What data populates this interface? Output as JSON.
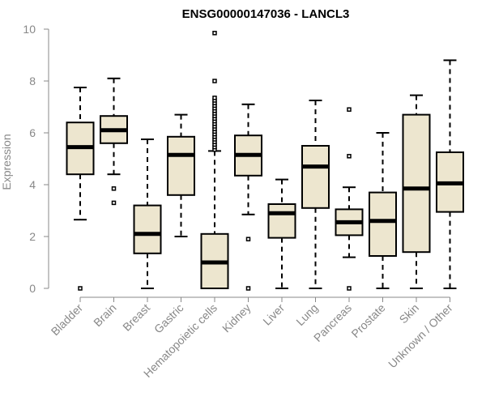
{
  "chart_data": {
    "type": "boxplot",
    "title": "ENSG00000147036 - LANCL3",
    "xlabel": "",
    "ylabel": "Expression",
    "ylim": [
      0,
      10
    ],
    "yticks": [
      0,
      2,
      4,
      6,
      8,
      10
    ],
    "box_color": "#ede6cf",
    "categories": [
      "Bladder",
      "Brain",
      "Breast",
      "Gastric",
      "Hematopoietic cells",
      "Kidney",
      "Liver",
      "Lung",
      "Pancreas",
      "Prostate",
      "Skin",
      "Unknown / Other"
    ],
    "boxes": [
      {
        "name": "Bladder",
        "min": 2.65,
        "q1": 4.4,
        "median": 5.45,
        "q3": 6.4,
        "max": 7.75,
        "outliers": [
          0.0
        ]
      },
      {
        "name": "Brain",
        "min": 4.4,
        "q1": 5.6,
        "median": 6.1,
        "q3": 6.65,
        "max": 8.1,
        "outliers": [
          3.85,
          3.3
        ]
      },
      {
        "name": "Breast",
        "min": 0.0,
        "q1": 1.35,
        "median": 2.1,
        "q3": 3.2,
        "max": 5.75,
        "outliers": []
      },
      {
        "name": "Gastric",
        "min": 2.0,
        "q1": 3.6,
        "median": 5.15,
        "q3": 5.85,
        "max": 6.7,
        "outliers": []
      },
      {
        "name": "Hematopoietic cells",
        "min": 0.0,
        "q1": 0.0,
        "median": 1.0,
        "q3": 2.1,
        "max": 5.3,
        "outliers": [
          5.35,
          5.45,
          5.55,
          5.65,
          5.75,
          5.85,
          5.95,
          6.05,
          6.15,
          6.25,
          6.35,
          6.45,
          6.55,
          6.65,
          6.75,
          6.85,
          6.95,
          7.05,
          7.15,
          7.25,
          7.35,
          8.0,
          9.85
        ]
      },
      {
        "name": "Kidney",
        "min": 2.85,
        "q1": 4.35,
        "median": 5.15,
        "q3": 5.9,
        "max": 7.1,
        "outliers": [
          1.9,
          0.0
        ]
      },
      {
        "name": "Liver",
        "min": 0.0,
        "q1": 1.95,
        "median": 2.9,
        "q3": 3.25,
        "max": 4.2,
        "outliers": []
      },
      {
        "name": "Lung",
        "min": 0.0,
        "q1": 3.1,
        "median": 4.7,
        "q3": 5.5,
        "max": 7.25,
        "outliers": []
      },
      {
        "name": "Pancreas",
        "min": 1.2,
        "q1": 2.05,
        "median": 2.55,
        "q3": 3.05,
        "max": 3.9,
        "outliers": [
          6.9,
          5.1,
          0.0
        ]
      },
      {
        "name": "Prostate",
        "min": 0.0,
        "q1": 1.25,
        "median": 2.6,
        "q3": 3.7,
        "max": 6.0,
        "outliers": []
      },
      {
        "name": "Skin",
        "min": 0.0,
        "q1": 1.4,
        "median": 3.85,
        "q3": 6.7,
        "max": 7.45,
        "outliers": []
      },
      {
        "name": "Unknown / Other",
        "min": 0.0,
        "q1": 2.95,
        "median": 4.05,
        "q3": 5.25,
        "max": 8.8,
        "outliers": []
      }
    ]
  }
}
